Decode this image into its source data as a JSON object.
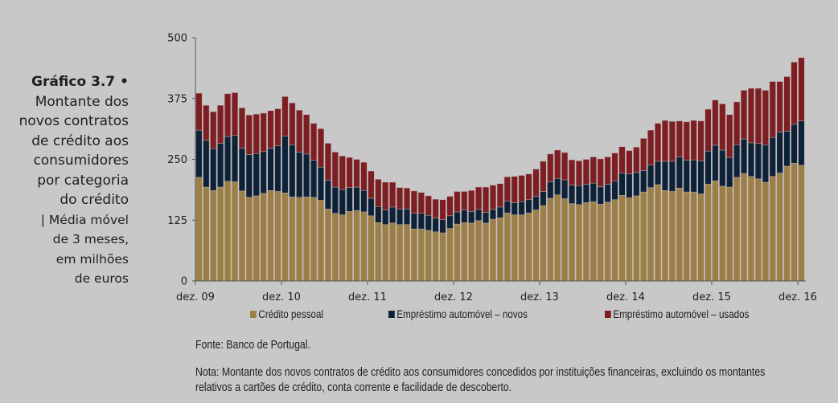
{
  "title": {
    "label": "Gráfico 3.7",
    "bullet": "•",
    "lines": [
      "Montante dos",
      "novos contratos",
      "de crédito aos",
      "consumidores",
      "por categoria",
      "do crédito"
    ],
    "sub_lines": [
      "| Média móvel",
      "de 3 meses,",
      "em milhões",
      "de euros"
    ]
  },
  "legend": [
    {
      "label": "Crédito pessoal",
      "color": "#9c7f45"
    },
    {
      "label": "Empréstimo automóvel – novos",
      "color": "#0c2238"
    },
    {
      "label": "Empréstimo automóvel – usados",
      "color": "#7d1e22"
    }
  ],
  "source": "Fonte: Banco de Portugal.",
  "note_line1": "Nota: Montante dos novos contratos de crédito aos consumidores concedidos por instituições financeiras, excluindo os montantes",
  "note_line2": "relativos a cartões de crédito, conta corrente e facilidade de descoberto.",
  "chart_data": {
    "type": "bar",
    "stacked": true,
    "title": "Montante dos novos contratos de crédito aos consumidores por categoria do crédito",
    "xlabel": "",
    "ylabel": "Média móvel de 3 meses, em milhões de euros",
    "ylim": [
      0,
      500
    ],
    "yticks": [
      0,
      125,
      250,
      375,
      500
    ],
    "xtick_labels": [
      "dez. 09",
      "dez. 10",
      "dez. 11",
      "dez. 12",
      "dez. 13",
      "dez. 14",
      "dez. 15",
      "dez. 16"
    ],
    "x_start": "dez. 09",
    "x_end": "dez. 16",
    "frequency": "monthly",
    "grid": false,
    "legend_position": "bottom",
    "series": [
      {
        "name": "Crédito pessoal",
        "color": "#9c7f45",
        "values": [
          213,
          193,
          186,
          193,
          205,
          204,
          185,
          172,
          175,
          180,
          186,
          184,
          181,
          173,
          172,
          173,
          172,
          166,
          148,
          139,
          136,
          143,
          145,
          142,
          134,
          120,
          116,
          119,
          116,
          116,
          107,
          107,
          104,
          101,
          99,
          108,
          117,
          120,
          119,
          124,
          119,
          127,
          130,
          140,
          136,
          136,
          140,
          146,
          155,
          170,
          177,
          169,
          159,
          157,
          161,
          163,
          158,
          162,
          167,
          176,
          171,
          175,
          183,
          192,
          198,
          186,
          184,
          191,
          183,
          183,
          179,
          199,
          206,
          195,
          193,
          213,
          221,
          215,
          210,
          203,
          215,
          222,
          236,
          242,
          238
        ],
        "values_note": "estimated"
      },
      {
        "name": "Empréstimo automóvel – novos",
        "color": "#0c2238",
        "values": [
          97,
          96,
          86,
          90,
          92,
          95,
          88,
          88,
          87,
          86,
          87,
          94,
          117,
          107,
          93,
          88,
          76,
          68,
          59,
          54,
          52,
          49,
          48,
          44,
          36,
          33,
          30,
          33,
          32,
          32,
          32,
          32,
          31,
          28,
          27,
          26,
          25,
          26,
          24,
          23,
          22,
          20,
          22,
          24,
          25,
          27,
          27,
          28,
          29,
          34,
          34,
          39,
          38,
          39,
          38,
          38,
          36,
          37,
          39,
          46,
          49,
          48,
          44,
          46,
          48,
          60,
          62,
          64,
          65,
          66,
          68,
          68,
          73,
          74,
          61,
          67,
          71,
          69,
          73,
          77,
          80,
          84,
          72,
          80,
          91
        ],
        "values_note": "estimated"
      },
      {
        "name": "Empréstimo automóvel – usados",
        "color": "#7d1e22",
        "values": [
          76,
          72,
          76,
          78,
          88,
          88,
          83,
          81,
          81,
          79,
          77,
          76,
          81,
          86,
          86,
          81,
          76,
          79,
          76,
          72,
          69,
          62,
          57,
          58,
          56,
          56,
          57,
          51,
          44,
          43,
          46,
          43,
          40,
          39,
          41,
          40,
          42,
          38,
          43,
          46,
          52,
          50,
          48,
          50,
          54,
          54,
          53,
          56,
          62,
          57,
          58,
          56,
          52,
          51,
          51,
          54,
          57,
          56,
          57,
          54,
          48,
          52,
          66,
          72,
          78,
          84,
          82,
          74,
          79,
          81,
          82,
          86,
          93,
          95,
          88,
          88,
          100,
          112,
          113,
          112,
          115,
          104,
          112,
          128,
          130
        ],
        "values_note": "estimated"
      }
    ]
  }
}
